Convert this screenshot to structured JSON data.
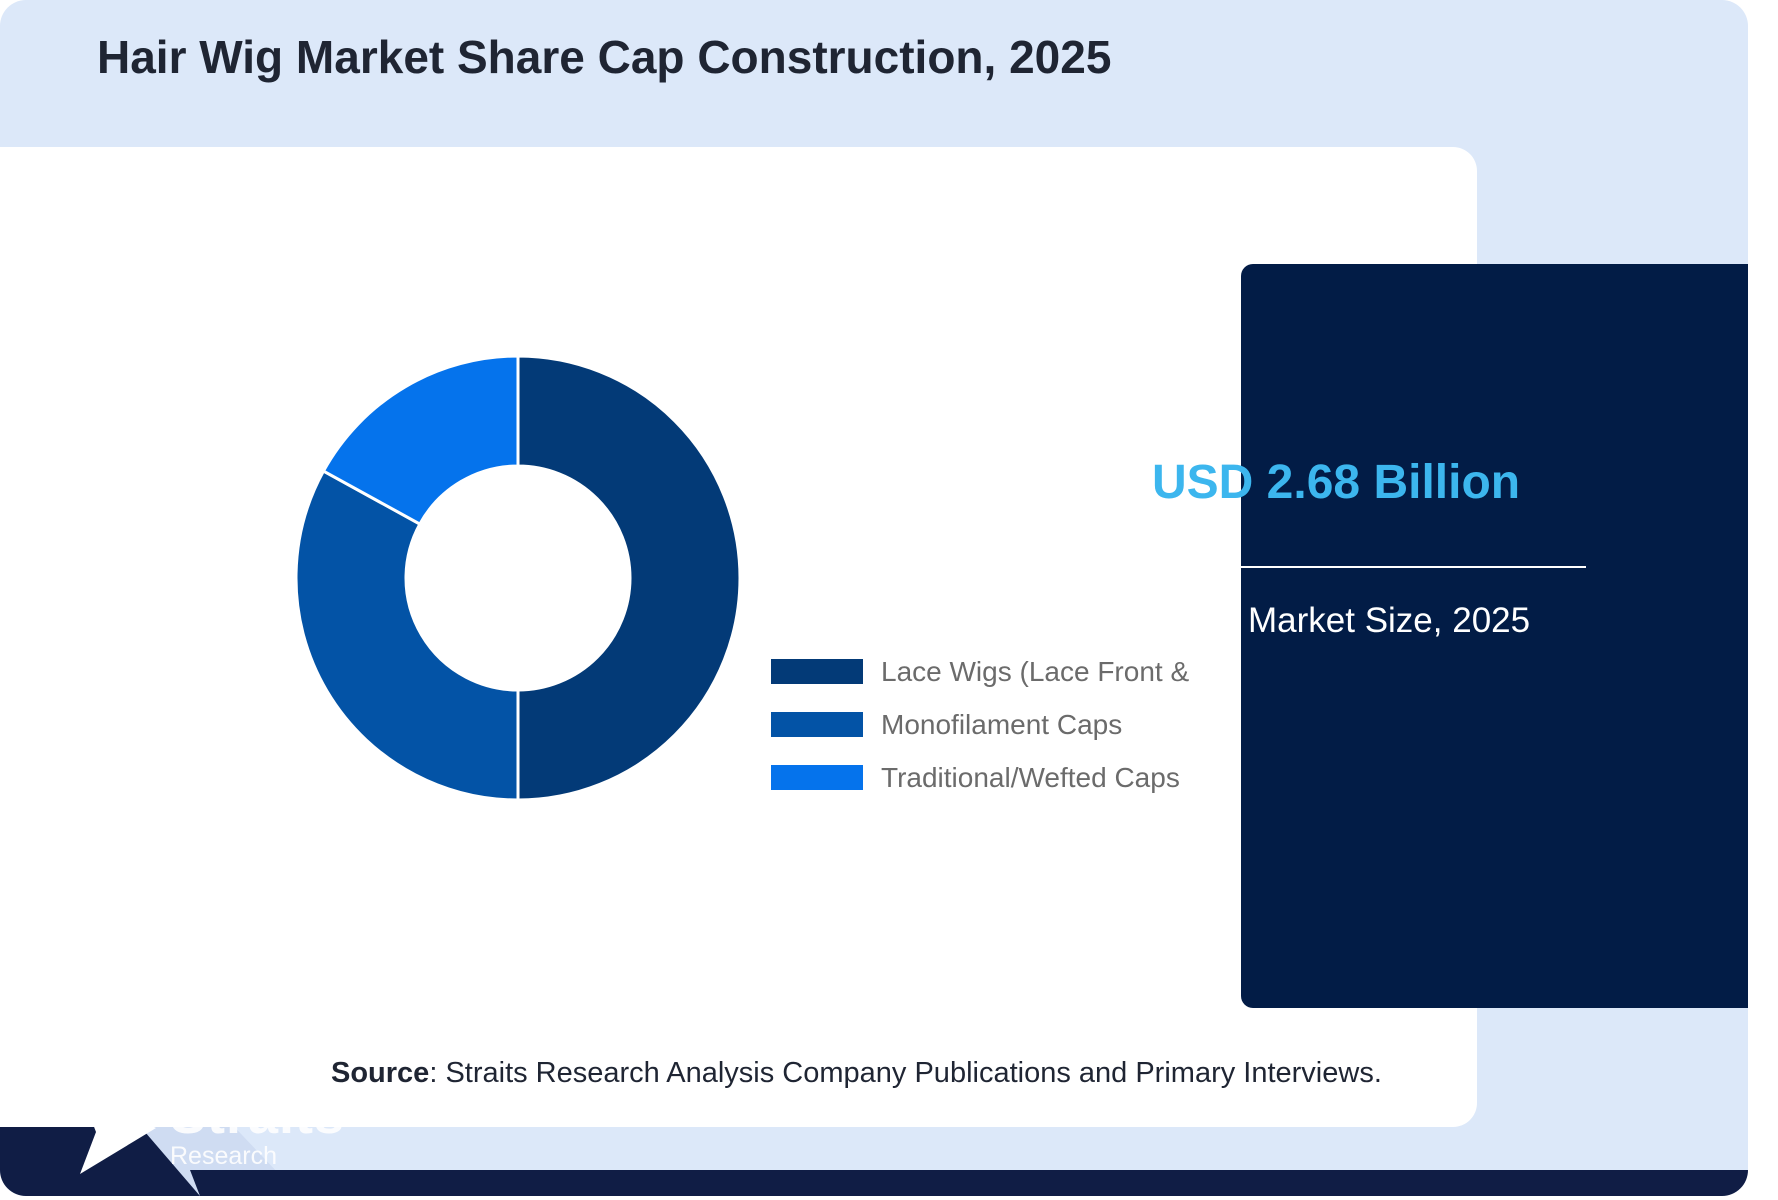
{
  "title": "Hair Wig Market Share Cap Construction, 2025",
  "chart_data": {
    "type": "pie",
    "donut": true,
    "categories": [
      "Lace Wigs (Lace Front &",
      "Monofilament Caps",
      "Traditional/Wefted Caps"
    ],
    "values": [
      50,
      33,
      17
    ],
    "colors": [
      "#033a77",
      "#0353a6",
      "#0573ec"
    ],
    "legend_position": "right"
  },
  "stat": {
    "value": "USD 2.68 Billion",
    "label": "Market Size, 2025"
  },
  "source": {
    "prefix": "Source",
    "text": ": Straits Research Analysis Company Publications and Primary Interviews."
  },
  "logo": {
    "name": "Straits",
    "sub": "Research"
  }
}
